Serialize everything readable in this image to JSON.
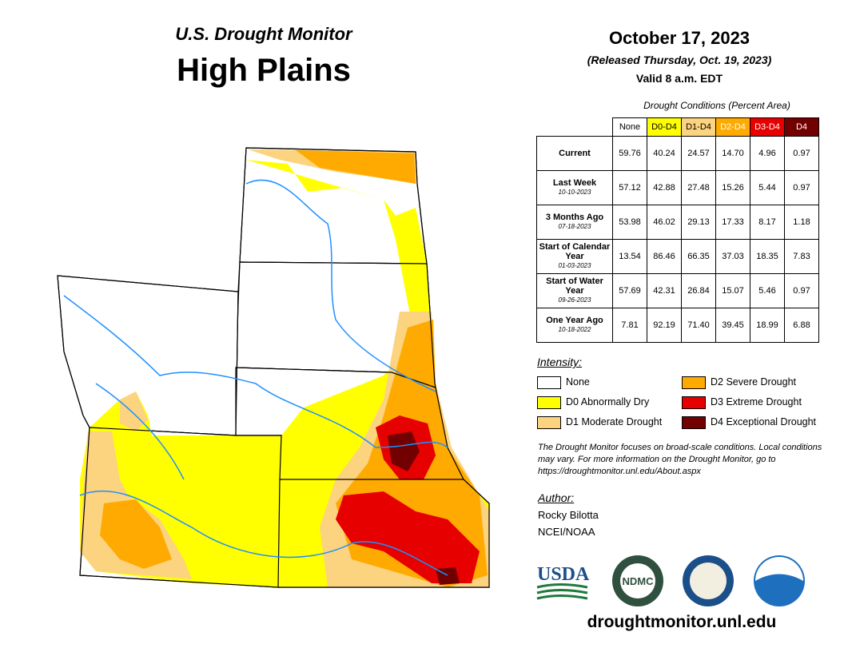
{
  "header": {
    "subtitle": "U.S. Drought Monitor",
    "title": "High Plains"
  },
  "dates": {
    "date": "October 17, 2023",
    "released": "(Released Thursday, Oct. 19, 2023)",
    "valid": "Valid 8 a.m. EDT"
  },
  "table": {
    "caption": "Drought Conditions (Percent Area)",
    "columns": [
      "None",
      "D0-D4",
      "D1-D4",
      "D2-D4",
      "D3-D4",
      "D4"
    ],
    "rows": [
      {
        "label": "Current",
        "values": [
          "59.76",
          "40.24",
          "24.57",
          "14.70",
          "4.96",
          "0.97"
        ]
      },
      {
        "label": "Last Week",
        "date": "10-10-2023",
        "values": [
          "57.12",
          "42.88",
          "27.48",
          "15.26",
          "5.44",
          "0.97"
        ]
      },
      {
        "label": "3 Months Ago",
        "date": "07-18-2023",
        "values": [
          "53.98",
          "46.02",
          "29.13",
          "17.33",
          "8.17",
          "1.18"
        ]
      },
      {
        "label": "Start of Calendar Year",
        "date": "01-03-2023",
        "values": [
          "13.54",
          "86.46",
          "66.35",
          "37.03",
          "18.35",
          "7.83"
        ]
      },
      {
        "label": "Start of Water Year",
        "date": "09-26-2023",
        "values": [
          "57.69",
          "42.31",
          "26.84",
          "15.07",
          "5.46",
          "0.97"
        ]
      },
      {
        "label": "One Year Ago",
        "date": "10-18-2022",
        "values": [
          "7.81",
          "92.19",
          "71.40",
          "39.45",
          "18.99",
          "6.88"
        ]
      }
    ]
  },
  "legend": {
    "title": "Intensity:",
    "items": [
      {
        "label": "None",
        "color": "#ffffff"
      },
      {
        "label": "D0 Abnormally Dry",
        "color": "#ffff00"
      },
      {
        "label": "D1 Moderate Drought",
        "color": "#fcd37f"
      },
      {
        "label": "D2 Severe Drought",
        "color": "#ffaa00"
      },
      {
        "label": "D3 Extreme Drought",
        "color": "#e60000"
      },
      {
        "label": "D4 Exceptional Drought",
        "color": "#730000"
      }
    ]
  },
  "note": "The Drought Monitor focuses on broad-scale conditions. Local conditions may vary. For more information on the Drought Monitor, go to https://droughtmonitor.unl.edu/About.aspx",
  "author": {
    "heading": "Author:",
    "name": "Rocky Bilotta",
    "org": "NCEI/NOAA"
  },
  "logos": {
    "usda": "USDA",
    "ndmc": "NDMC"
  },
  "footer": {
    "url": "droughtmonitor.unl.edu"
  }
}
